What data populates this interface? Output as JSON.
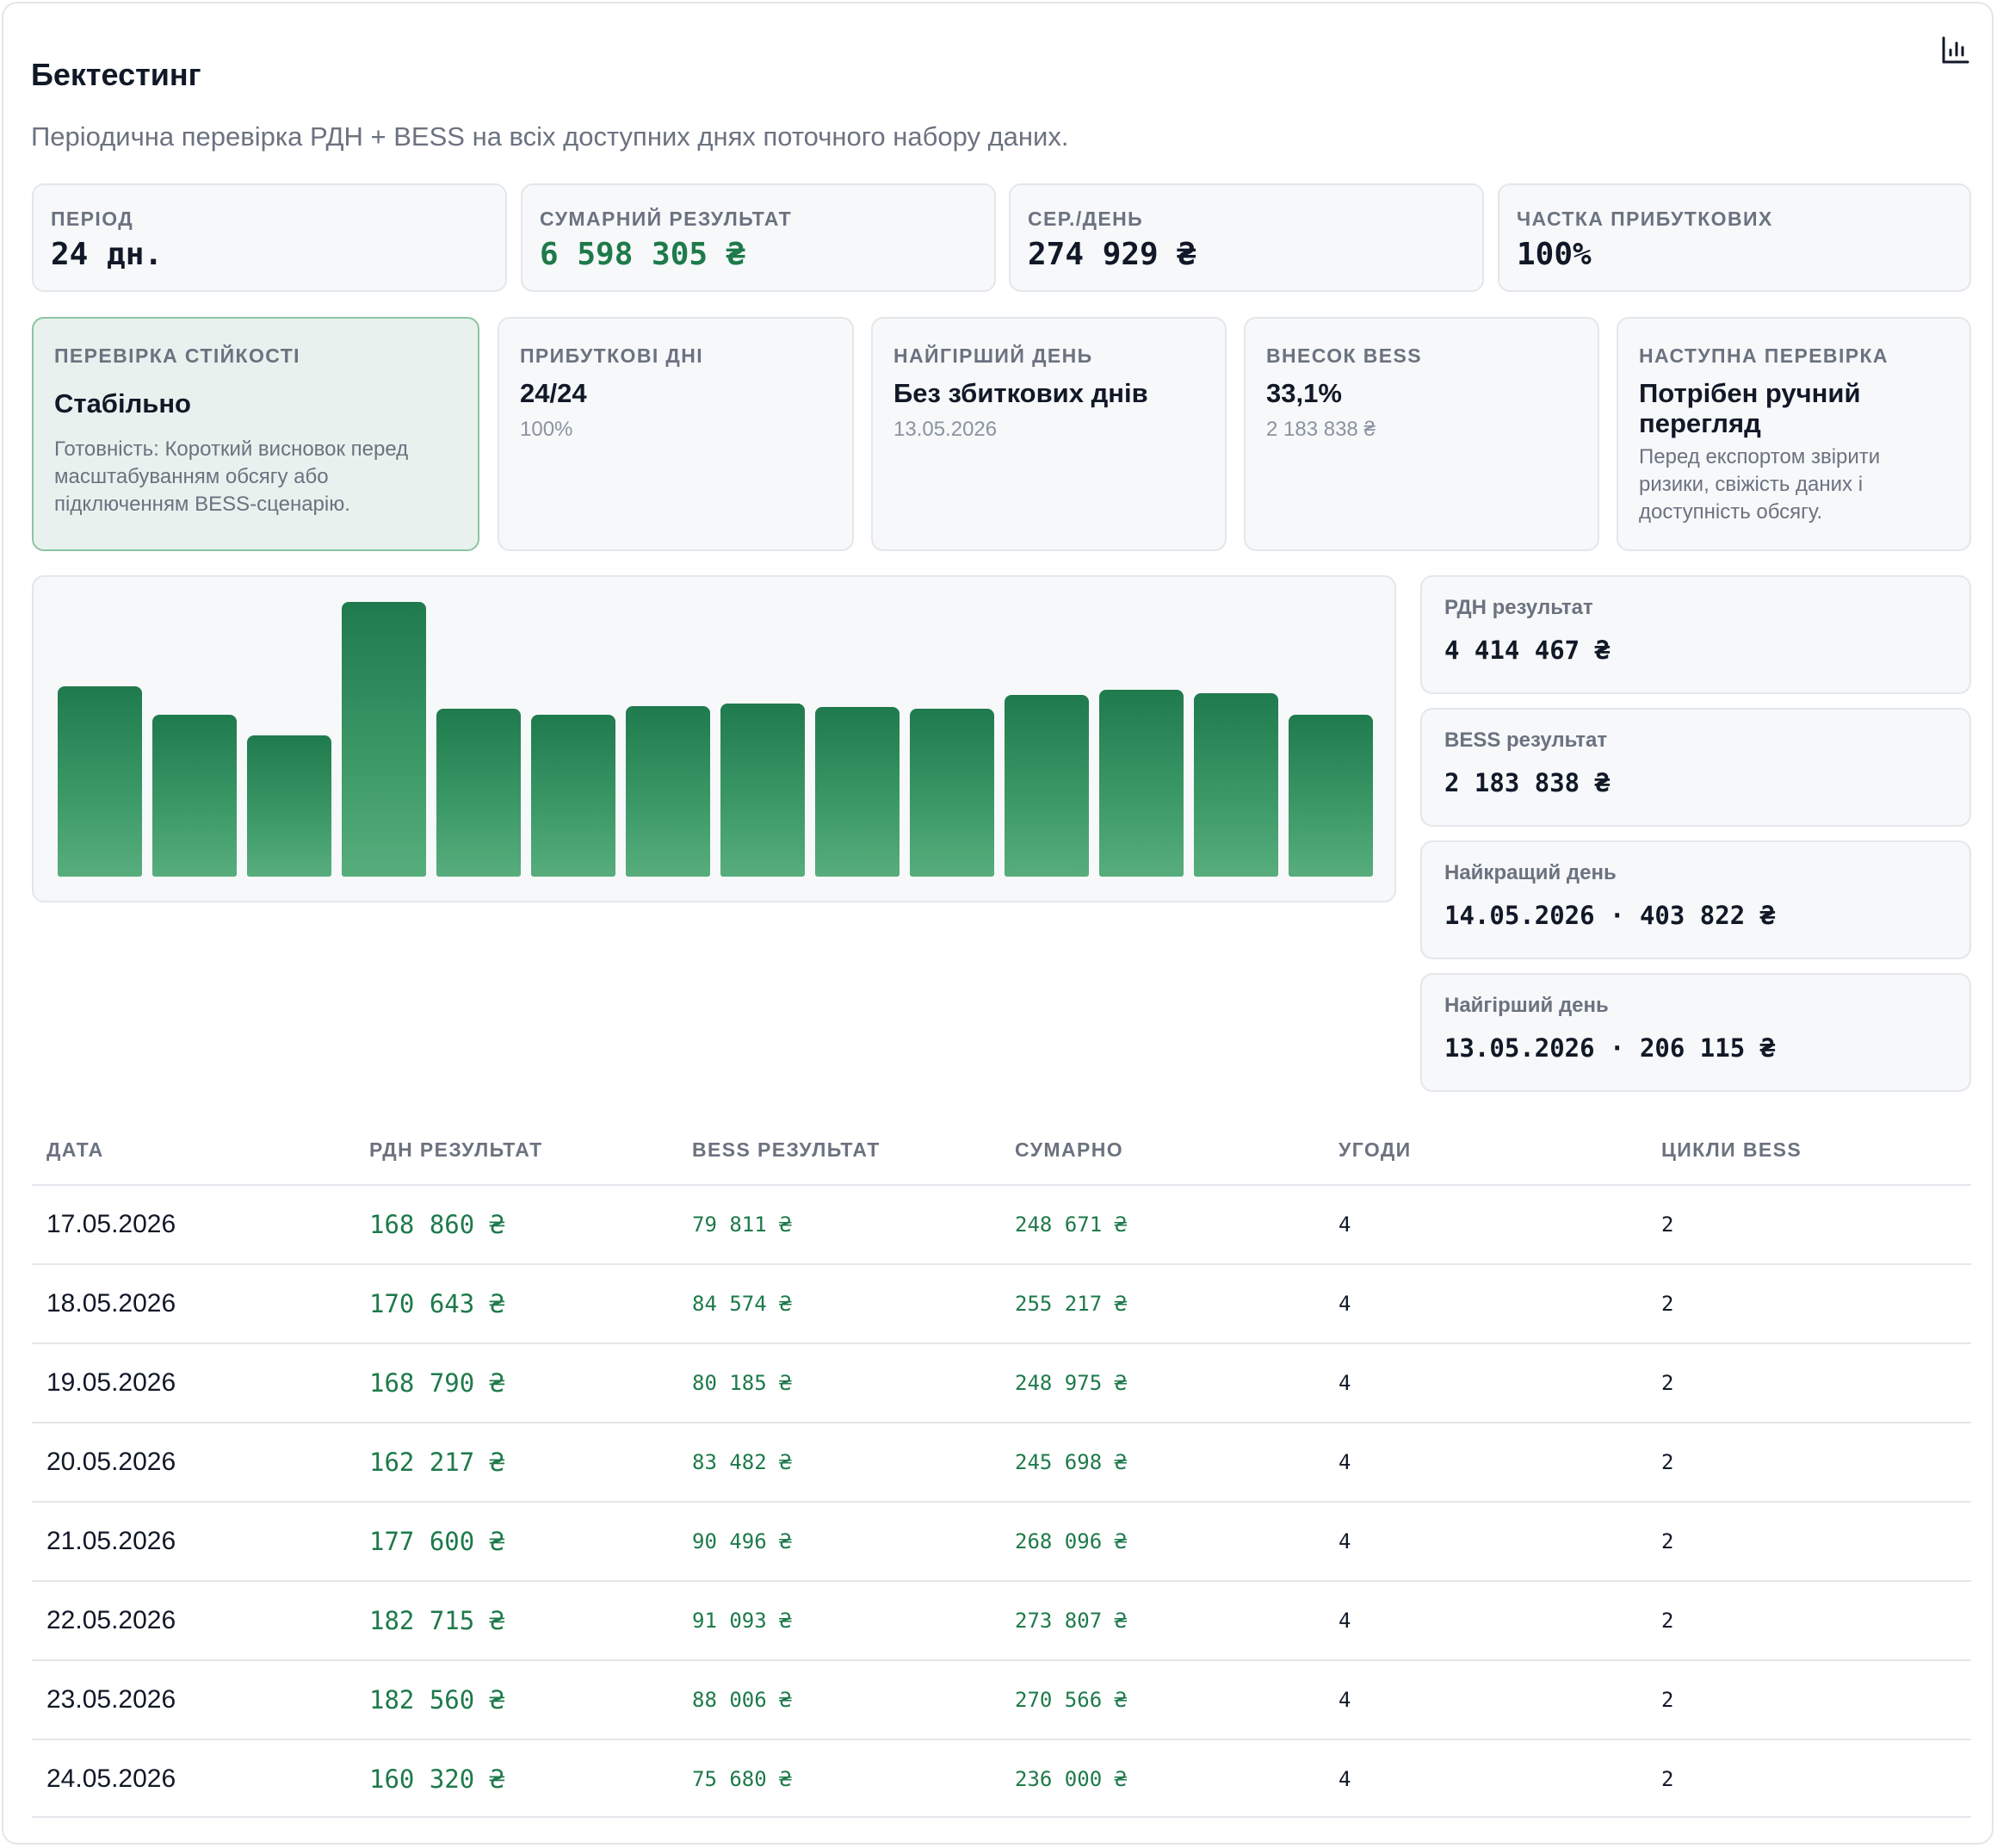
{
  "header": {
    "title": "Бектестинг",
    "subtitle": "Періодична перевірка РДН + BESS на всіх доступних днях поточного набору даних.",
    "icon": "bar-chart-icon"
  },
  "kpis": [
    {
      "label": "ПЕРІОД",
      "value": "24 дн."
    },
    {
      "label": "СУМАРНИЙ РЕЗУЛЬТАТ",
      "value": "6 598 305 ₴"
    },
    {
      "label": "СЕР./ДЕНЬ",
      "value": "274 929 ₴"
    },
    {
      "label": "ЧАСТКА ПРИБУТКОВИХ",
      "value": "100%"
    }
  ],
  "stats": {
    "stability": {
      "label": "ПЕРЕВІРКА СТІЙКОСТІ",
      "value": "Стабільно",
      "description": "Готовність: Короткий висновок перед масштабуванням обсягу або підключенням BESS-сценарію."
    },
    "profitable_days": {
      "label": "ПРИБУТКОВІ ДНІ",
      "value": "24/24",
      "sub": "100%"
    },
    "worst_day": {
      "label": "НАЙГІРШИЙ ДЕНЬ",
      "value": "Без збиткових днів",
      "sub": "13.05.2026"
    },
    "bess_share": {
      "label": "ВНЕСОК BESS",
      "value": "33,1%",
      "sub": "2 183 838 ₴"
    },
    "next_check": {
      "label": "НАСТУПНА ПЕРЕВІРКА",
      "value": "Потрібен ручний перегляд",
      "description": "Перед експортом звірити ризики, свіжість даних і доступність обсягу."
    }
  },
  "chart_data": {
    "type": "bar",
    "values": [
      221,
      188,
      164,
      319,
      195,
      188,
      198,
      201,
      197,
      195,
      211,
      217,
      213,
      188
    ],
    "ylim": [
      0,
      319
    ],
    "colors": {
      "bar_top": "#1f7a4d",
      "bar_bottom": "#58ad7d"
    }
  },
  "side": [
    {
      "label": "РДН результат",
      "value": "4 414 467 ₴"
    },
    {
      "label": "BESS результат",
      "value": "2 183 838 ₴"
    },
    {
      "label": "Найкращий день",
      "value": "14.05.2026 · 403 822 ₴"
    },
    {
      "label": "Найгірший день",
      "value": "13.05.2026 · 206 115 ₴"
    }
  ],
  "table": {
    "headers": [
      "ДАТА",
      "РДН РЕЗУЛЬТАТ",
      "BESS РЕЗУЛЬТАТ",
      "СУМАРНО",
      "УГОДИ",
      "ЦИКЛИ BESS"
    ],
    "rows": [
      {
        "date": "17.05.2026",
        "rdn": "168 860 ₴",
        "bess": "79 811 ₴",
        "sum": "248 671 ₴",
        "deals": "4",
        "cycles": "2"
      },
      {
        "date": "18.05.2026",
        "rdn": "170 643 ₴",
        "bess": "84 574 ₴",
        "sum": "255 217 ₴",
        "deals": "4",
        "cycles": "2"
      },
      {
        "date": "19.05.2026",
        "rdn": "168 790 ₴",
        "bess": "80 185 ₴",
        "sum": "248 975 ₴",
        "deals": "4",
        "cycles": "2"
      },
      {
        "date": "20.05.2026",
        "rdn": "162 217 ₴",
        "bess": "83 482 ₴",
        "sum": "245 698 ₴",
        "deals": "4",
        "cycles": "2"
      },
      {
        "date": "21.05.2026",
        "rdn": "177 600 ₴",
        "bess": "90 496 ₴",
        "sum": "268 096 ₴",
        "deals": "4",
        "cycles": "2"
      },
      {
        "date": "22.05.2026",
        "rdn": "182 715 ₴",
        "bess": "91 093 ₴",
        "sum": "273 807 ₴",
        "deals": "4",
        "cycles": "2"
      },
      {
        "date": "23.05.2026",
        "rdn": "182 560 ₴",
        "bess": "88 006 ₴",
        "sum": "270 566 ₴",
        "deals": "4",
        "cycles": "2"
      },
      {
        "date": "24.05.2026",
        "rdn": "160 320 ₴",
        "bess": "75 680 ₴",
        "sum": "236 000 ₴",
        "deals": "4",
        "cycles": "2"
      }
    ]
  },
  "colors": {
    "accent": "#1e7a4a",
    "muted": "#6b7280",
    "card_bg": "#f6f8f9",
    "stability_bg": "#e8f1ee"
  }
}
